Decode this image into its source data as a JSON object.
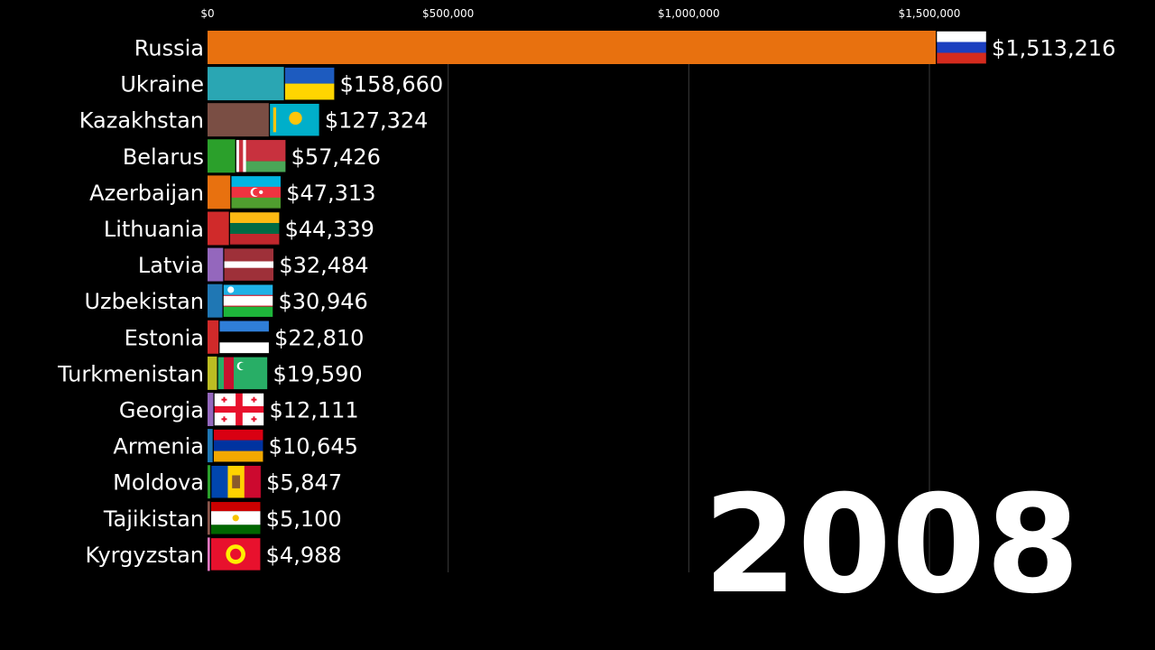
{
  "chart_data": {
    "type": "bar",
    "orientation": "horizontal",
    "title": "",
    "xlabel": "",
    "ylabel": "",
    "year": "2008",
    "xlim": [
      0,
      1900000
    ],
    "x_ticks": [
      {
        "value": 0,
        "label": "$0"
      },
      {
        "value": 500000,
        "label": "$500,000"
      },
      {
        "value": 1000000,
        "label": "$1,000,000"
      },
      {
        "value": 1500000,
        "label": "$1,500,000"
      }
    ],
    "grid": true,
    "categories": [
      "Russia",
      "Ukraine",
      "Kazakhstan",
      "Belarus",
      "Azerbaijan",
      "Lithuania",
      "Latvia",
      "Uzbekistan",
      "Estonia",
      "Turkmenistan",
      "Georgia",
      "Armenia",
      "Moldova",
      "Tajikistan",
      "Kyrgyzstan"
    ],
    "values": [
      1513216,
      158660,
      127324,
      57426,
      47313,
      44339,
      32484,
      30946,
      22810,
      19590,
      12111,
      10645,
      5847,
      5100,
      4988
    ],
    "value_labels": [
      "$1,513,216",
      "$158,660",
      "$127,324",
      "$57,426",
      "$47,313",
      "$44,339",
      "$32,484",
      "$30,946",
      "$22,810",
      "$19,590",
      "$12,111",
      "$10,645",
      "$5,847",
      "$5,100",
      "$4,988"
    ],
    "bar_colors": [
      "#e8710f",
      "#2aa6b3",
      "#7a4e44",
      "#2ba02b",
      "#e8710f",
      "#d02a2a",
      "#9467bd",
      "#1f77b4",
      "#d02a2a",
      "#bcbd22",
      "#9467bd",
      "#1f77b4",
      "#2ba02b",
      "#8c564b",
      "#e377c2"
    ],
    "flags": [
      "russia-flag",
      "ukraine-flag",
      "kazakhstan-flag",
      "belarus-flag",
      "azerbaijan-flag",
      "lithuania-flag",
      "latvia-flag",
      "uzbekistan-flag",
      "estonia-flag",
      "turkmenistan-flag",
      "georgia-flag",
      "armenia-flag",
      "moldova-flag",
      "tajikistan-flag",
      "kyrgyzstan-flag"
    ]
  }
}
